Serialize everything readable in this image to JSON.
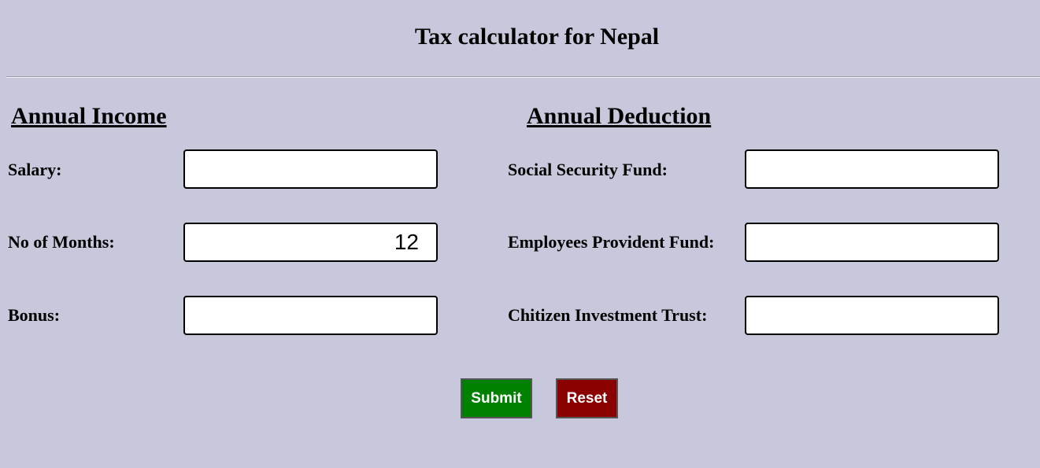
{
  "header": {
    "title": "Tax calculator for Nepal"
  },
  "income": {
    "heading": "Annual Income",
    "fields": [
      {
        "label": "Salary:",
        "value": ""
      },
      {
        "label": "No of Months:",
        "value": "12"
      },
      {
        "label": "Bonus:",
        "value": ""
      }
    ]
  },
  "deduction": {
    "heading": "Annual Deduction",
    "fields": [
      {
        "label": "Social Security Fund:",
        "value": ""
      },
      {
        "label": "Employees Provident Fund:",
        "value": ""
      },
      {
        "label": "Chitizen Investment Trust:",
        "value": ""
      }
    ]
  },
  "actions": {
    "submit_label": "Submit",
    "reset_label": "Reset"
  },
  "colors": {
    "background": "#c8c8dc",
    "submit": "#008000",
    "reset": "#8b0000"
  }
}
